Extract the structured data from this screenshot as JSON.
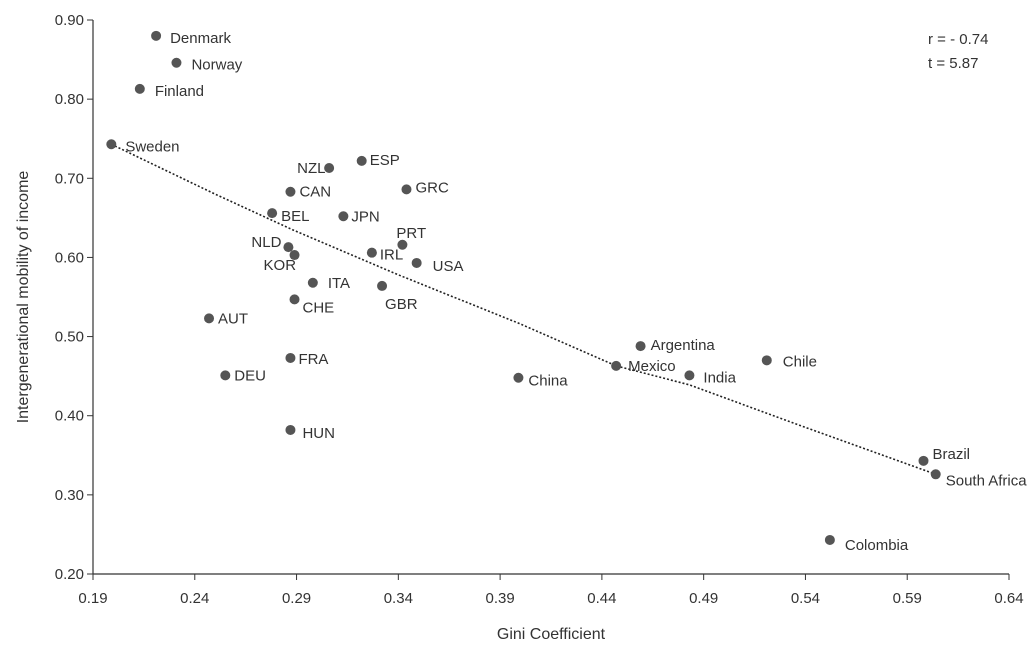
{
  "chart_data": {
    "type": "scatter",
    "xlabel": "Gini Coefficient",
    "ylabel": "Intergenerational mobility of income",
    "xlim": [
      0.19,
      0.64
    ],
    "ylim": [
      0.2,
      0.9
    ],
    "xticks": [
      "0.19",
      "0.24",
      "0.29",
      "0.34",
      "0.39",
      "0.44",
      "0.49",
      "0.54",
      "0.59",
      "0.64"
    ],
    "yticks": [
      "0.20",
      "0.30",
      "0.40",
      "0.50",
      "0.60",
      "0.70",
      "0.80",
      "0.90"
    ],
    "grid": false,
    "marker_color": "#555555",
    "annotations": {
      "r": "r = - 0.74",
      "t": "t = 5.87"
    },
    "points": [
      {
        "label": "Denmark",
        "x": 0.221,
        "y": 0.88
      },
      {
        "label": "Norway",
        "x": 0.231,
        "y": 0.846
      },
      {
        "label": "Finland",
        "x": 0.213,
        "y": 0.813
      },
      {
        "label": "Sweden",
        "x": 0.199,
        "y": 0.743
      },
      {
        "label": "NZL",
        "x": 0.306,
        "y": 0.713
      },
      {
        "label": "ESP",
        "x": 0.322,
        "y": 0.722
      },
      {
        "label": "GRC",
        "x": 0.344,
        "y": 0.686
      },
      {
        "label": "CAN",
        "x": 0.287,
        "y": 0.683
      },
      {
        "label": "BEL",
        "x": 0.278,
        "y": 0.656
      },
      {
        "label": "JPN",
        "x": 0.313,
        "y": 0.652
      },
      {
        "label": "PRT",
        "x": 0.342,
        "y": 0.616
      },
      {
        "label": "NLD",
        "x": 0.286,
        "y": 0.613
      },
      {
        "label": "IRL",
        "x": 0.327,
        "y": 0.606
      },
      {
        "label": "KOR",
        "x": 0.289,
        "y": 0.603
      },
      {
        "label": "USA",
        "x": 0.349,
        "y": 0.593
      },
      {
        "label": "ITA",
        "x": 0.298,
        "y": 0.568
      },
      {
        "label": "GBR",
        "x": 0.332,
        "y": 0.564
      },
      {
        "label": "CHE",
        "x": 0.289,
        "y": 0.547
      },
      {
        "label": "AUT",
        "x": 0.247,
        "y": 0.523
      },
      {
        "label": "FRA",
        "x": 0.287,
        "y": 0.473
      },
      {
        "label": "DEU",
        "x": 0.255,
        "y": 0.451
      },
      {
        "label": "HUN",
        "x": 0.287,
        "y": 0.382
      },
      {
        "label": "China",
        "x": 0.399,
        "y": 0.448
      },
      {
        "label": "Argentina",
        "x": 0.459,
        "y": 0.488
      },
      {
        "label": "Mexico",
        "x": 0.447,
        "y": 0.463
      },
      {
        "label": "India",
        "x": 0.483,
        "y": 0.451
      },
      {
        "label": "Chile",
        "x": 0.521,
        "y": 0.47
      },
      {
        "label": "Brazil",
        "x": 0.598,
        "y": 0.343
      },
      {
        "label": "South Africa",
        "x": 0.604,
        "y": 0.326
      },
      {
        "label": "Colombia",
        "x": 0.552,
        "y": 0.243
      }
    ],
    "trendline": [
      {
        "x": 0.199,
        "y": 0.743
      },
      {
        "x": 0.25,
        "y": 0.68
      },
      {
        "x": 0.288,
        "y": 0.635
      },
      {
        "x": 0.34,
        "y": 0.578
      },
      {
        "x": 0.399,
        "y": 0.517
      },
      {
        "x": 0.447,
        "y": 0.463
      },
      {
        "x": 0.483,
        "y": 0.439
      },
      {
        "x": 0.537,
        "y": 0.388
      },
      {
        "x": 0.604,
        "y": 0.326
      }
    ]
  }
}
